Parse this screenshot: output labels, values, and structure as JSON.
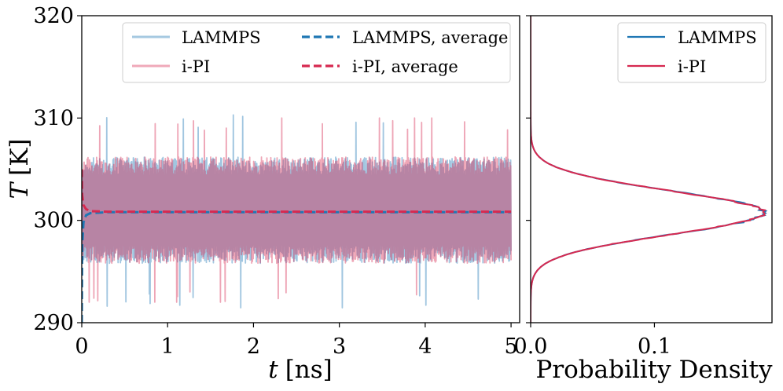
{
  "chart_data": [
    {
      "type": "line",
      "panel": "time-series",
      "xlabel_var": "t",
      "xlabel_unit": "[ns]",
      "ylabel_var": "T",
      "ylabel_unit": "[K]",
      "xlim": [
        0,
        5.1
      ],
      "ylim": [
        290,
        320
      ],
      "xticks": [
        0,
        1,
        2,
        3,
        4,
        5
      ],
      "yticks": [
        290,
        300,
        310,
        320
      ],
      "legend_position": "top-right",
      "series": [
        {
          "name": "LAMMPS",
          "color": "#1f77b4",
          "style": "raw",
          "mean": 301.0,
          "halfwidth": 5.2,
          "min": 291.0,
          "max": 310.3
        },
        {
          "name": "i-PI",
          "color": "#d62950",
          "style": "raw",
          "mean": 301.0,
          "halfwidth": 5.2,
          "min": 292.0,
          "max": 310.0
        },
        {
          "name": "LAMMPS, average",
          "color": "#1f77b4",
          "style": "dashed",
          "x": [
            0,
            0.005,
            0.02,
            0.05,
            0.1,
            0.3,
            1,
            2,
            3,
            4,
            5
          ],
          "values": [
            290,
            297.5,
            299.8,
            300.5,
            300.7,
            300.8,
            300.8,
            300.8,
            300.8,
            300.8,
            300.8
          ]
        },
        {
          "name": "i-PI, average",
          "color": "#d62950",
          "style": "dashed",
          "x": [
            0,
            0.005,
            0.02,
            0.05,
            0.1,
            0.3,
            1,
            2,
            3,
            4,
            5
          ],
          "values": [
            305,
            302.5,
            301.5,
            301.1,
            300.9,
            300.85,
            300.85,
            300.85,
            300.85,
            300.85,
            300.85
          ]
        }
      ]
    },
    {
      "type": "line",
      "panel": "distribution",
      "xlabel": "Probability Density",
      "xlim": [
        0,
        0.195
      ],
      "ylim": [
        290,
        320
      ],
      "xticks": [
        0.0,
        0.1
      ],
      "xtick_labels": [
        "0.0",
        "0.1"
      ],
      "legend_position": "top-right",
      "series": [
        {
          "name": "LAMMPS",
          "color": "#1f77b4",
          "mean": 300.75,
          "sigma": 2.12,
          "peak": 0.188
        },
        {
          "name": "i-PI",
          "color": "#d62950",
          "mean": 300.75,
          "sigma": 2.12,
          "peak": 0.188
        }
      ]
    }
  ]
}
